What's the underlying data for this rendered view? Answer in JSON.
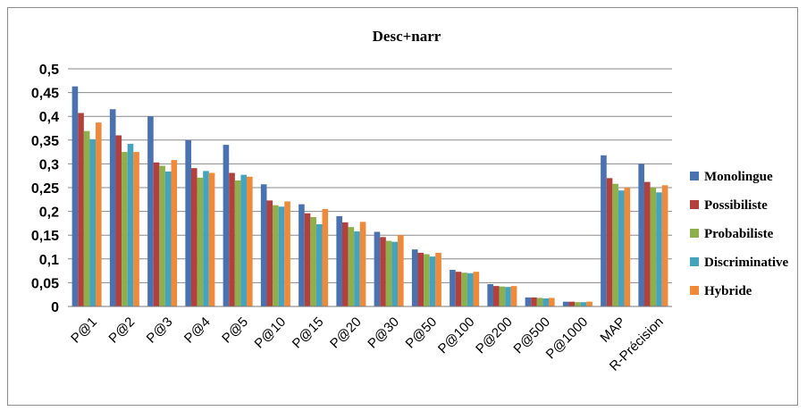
{
  "chart_data": {
    "type": "bar",
    "title": "Desc+narr",
    "xlabel": "",
    "ylabel": "",
    "ylim": [
      0,
      0.5
    ],
    "yticks": [
      "0",
      "0,05",
      "0,1",
      "0,15",
      "0,2",
      "0,25",
      "0,3",
      "0,35",
      "0,4",
      "0,45",
      "0,5"
    ],
    "grid": true,
    "legend_position": "right",
    "categories": [
      "P@1",
      "P@2",
      "P@3",
      "P@4",
      "P@5",
      "P@10",
      "P@15",
      "P@20",
      "P@30",
      "P@50",
      "P@100",
      "P@200",
      "P@500",
      "P@1000",
      "MAP",
      "R-Précision"
    ],
    "series": [
      {
        "name": "Monolingue",
        "color": "#4a72b0",
        "values": [
          0.463,
          0.415,
          0.4,
          0.35,
          0.34,
          0.257,
          0.215,
          0.19,
          0.157,
          0.12,
          0.077,
          0.047,
          0.019,
          0.01,
          0.318,
          0.3
        ]
      },
      {
        "name": "Possibiliste",
        "color": "#b2403d",
        "values": [
          0.407,
          0.36,
          0.303,
          0.291,
          0.281,
          0.223,
          0.196,
          0.177,
          0.146,
          0.113,
          0.073,
          0.043,
          0.019,
          0.01,
          0.27,
          0.262
        ]
      },
      {
        "name": "Probabiliste",
        "color": "#8db04d",
        "values": [
          0.369,
          0.325,
          0.296,
          0.271,
          0.265,
          0.213,
          0.188,
          0.167,
          0.138,
          0.11,
          0.071,
          0.042,
          0.018,
          0.009,
          0.258,
          0.25
        ]
      },
      {
        "name": "Discriminative",
        "color": "#45a3bd",
        "values": [
          0.352,
          0.342,
          0.284,
          0.285,
          0.277,
          0.21,
          0.173,
          0.158,
          0.136,
          0.105,
          0.07,
          0.041,
          0.017,
          0.009,
          0.244,
          0.24
        ]
      },
      {
        "name": "Hybride",
        "color": "#ef8a3a",
        "values": [
          0.387,
          0.325,
          0.308,
          0.281,
          0.273,
          0.221,
          0.205,
          0.178,
          0.15,
          0.113,
          0.073,
          0.043,
          0.018,
          0.01,
          0.25,
          0.255
        ]
      }
    ]
  }
}
